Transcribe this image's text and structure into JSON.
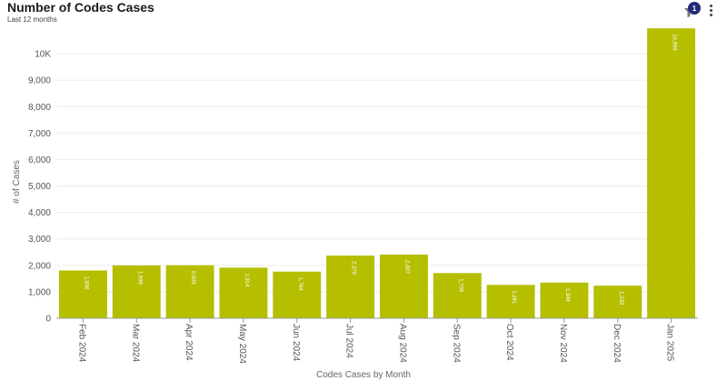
{
  "header": {
    "title": "Number of Codes Cases",
    "subtitle": "Last 12 months"
  },
  "toolbar": {
    "filter_count": "1",
    "filter_icon": "filter-icon",
    "more_icon": "more-vertical-icon"
  },
  "colors": {
    "bar": "#b5bf00",
    "badge": "#1f2a7a"
  },
  "chart_data": {
    "type": "bar",
    "categories": [
      "Feb 2024",
      "Mar 2024",
      "Apr 2024",
      "May 2024",
      "Jun 2024",
      "Jul 2024",
      "Aug 2024",
      "Sep 2024",
      "Oct 2024",
      "Nov 2024",
      "Dec 2024",
      "Jan 2025"
    ],
    "values": [
      1806,
      1999,
      2005,
      1914,
      1764,
      2370,
      2407,
      1709,
      1261,
      1349,
      1233,
      10959
    ],
    "value_labels": [
      "1,806",
      "1,999",
      "2,005",
      "1,914",
      "1,764",
      "2,370",
      "2,407",
      "1,709",
      "1,261",
      "1,349",
      "1,233",
      "10,959"
    ],
    "xlabel": "Codes Cases by Month",
    "ylabel": "# of Cases",
    "ylim": [
      0,
      11000
    ],
    "yticks": [
      0,
      1000,
      2000,
      3000,
      4000,
      5000,
      6000,
      7000,
      8000,
      9000,
      10000
    ],
    "ytick_labels": [
      "0",
      "1,000",
      "2,000",
      "3,000",
      "4,000",
      "5,000",
      "6,000",
      "7,000",
      "8,000",
      "9,000",
      "10K"
    ],
    "grid": true,
    "legend": "none"
  }
}
